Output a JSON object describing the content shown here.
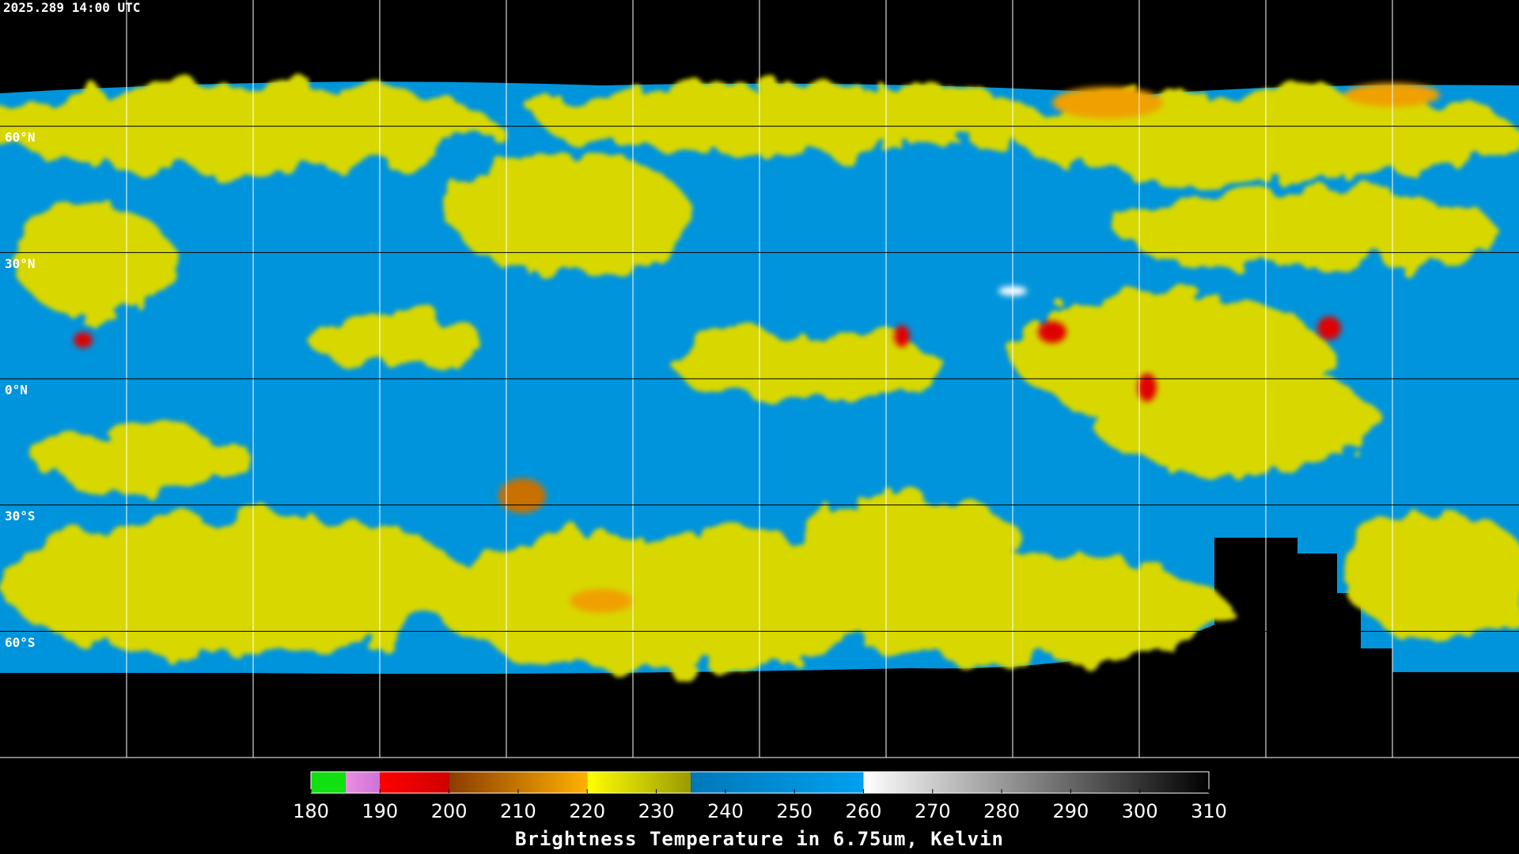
{
  "timestamp": "2025.289 14:00 UTC",
  "map": {
    "lon_lines": [
      -150,
      -120,
      -90,
      -60,
      -30,
      0,
      30,
      60,
      90,
      120,
      150
    ],
    "lat_lines": [
      {
        "value": 60,
        "label": "60°N"
      },
      {
        "value": 30,
        "label": "30°N"
      },
      {
        "value": 0,
        "label": "0°N"
      },
      {
        "value": -30,
        "label": "30°S"
      },
      {
        "value": -60,
        "label": "60°S"
      }
    ]
  },
  "colorbar": {
    "label": "Brightness Temperature in 6.75um, Kelvin",
    "range": [
      180,
      310
    ],
    "ticks": [
      180,
      190,
      200,
      210,
      220,
      230,
      240,
      250,
      260,
      270,
      280,
      290,
      300,
      310
    ],
    "stops": [
      {
        "from": 180,
        "to": 185,
        "colors": [
          "#10e010",
          "#10e010"
        ]
      },
      {
        "from": 185,
        "to": 190,
        "colors": [
          "#e890e0",
          "#d070d8"
        ]
      },
      {
        "from": 190,
        "to": 200,
        "colors": [
          "#ff0000",
          "#d00000"
        ]
      },
      {
        "from": 200,
        "to": 220,
        "colors": [
          "#8a3c00",
          "#ffb000"
        ]
      },
      {
        "from": 220,
        "to": 235,
        "colors": [
          "#ffff00",
          "#9a9a00"
        ]
      },
      {
        "from": 235,
        "to": 260,
        "colors": [
          "#0078b8",
          "#00a0f0"
        ]
      },
      {
        "from": 260,
        "to": 310,
        "colors": [
          "#ffffff",
          "#000000"
        ]
      }
    ]
  }
}
